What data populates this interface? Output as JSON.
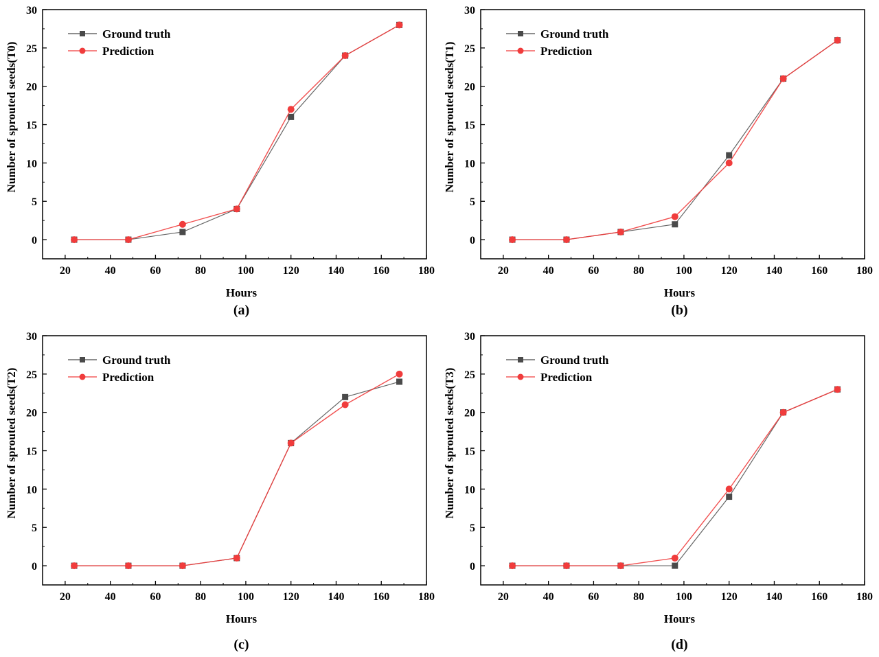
{
  "chart_data": [
    {
      "type": "line",
      "panel": "(a)",
      "title": "",
      "xlabel": "Hours",
      "ylabel": "Number of sprouted seeds(T0)",
      "xlim": [
        10,
        180
      ],
      "ylim": [
        -2.5,
        30
      ],
      "xticks": [
        20,
        40,
        60,
        80,
        100,
        120,
        140,
        160,
        180
      ],
      "yticks": [
        0,
        5,
        10,
        15,
        20,
        25,
        30
      ],
      "x": [
        24,
        48,
        72,
        96,
        120,
        144,
        168
      ],
      "series": [
        {
          "name": "Ground truth",
          "marker": "square",
          "color": "#4a4a4a",
          "values": [
            0,
            0,
            1,
            4,
            16,
            24,
            28
          ]
        },
        {
          "name": "Prediction",
          "marker": "circle",
          "color": "#f03c3c",
          "values": [
            0,
            0,
            2,
            4,
            17,
            24,
            28
          ]
        }
      ],
      "legend": "top-left",
      "grid": false
    },
    {
      "type": "line",
      "panel": "(b)",
      "title": "",
      "xlabel": "Hours",
      "ylabel": "Number of sprouted seeds(T1)",
      "xlim": [
        10,
        180
      ],
      "ylim": [
        -2.5,
        30
      ],
      "xticks": [
        20,
        40,
        60,
        80,
        100,
        120,
        140,
        160,
        180
      ],
      "yticks": [
        0,
        5,
        10,
        15,
        20,
        25,
        30
      ],
      "x": [
        24,
        48,
        72,
        96,
        120,
        144,
        168
      ],
      "series": [
        {
          "name": "Ground truth",
          "marker": "square",
          "color": "#4a4a4a",
          "values": [
            0,
            0,
            1,
            2,
            11,
            21,
            26
          ]
        },
        {
          "name": "Prediction",
          "marker": "circle",
          "color": "#f03c3c",
          "values": [
            0,
            0,
            1,
            3,
            10,
            21,
            26
          ]
        }
      ],
      "legend": "top-left",
      "grid": false
    },
    {
      "type": "line",
      "panel": "(c)",
      "title": "",
      "xlabel": "Hours",
      "ylabel": "Number of sprouted seeds(T2)",
      "xlim": [
        10,
        180
      ],
      "ylim": [
        -2.5,
        30
      ],
      "xticks": [
        20,
        40,
        60,
        80,
        100,
        120,
        140,
        160,
        180
      ],
      "yticks": [
        0,
        5,
        10,
        15,
        20,
        25,
        30
      ],
      "x": [
        24,
        48,
        72,
        96,
        120,
        144,
        168
      ],
      "series": [
        {
          "name": "Ground truth",
          "marker": "square",
          "color": "#4a4a4a",
          "values": [
            0,
            0,
            0,
            1,
            16,
            22,
            24
          ]
        },
        {
          "name": "Prediction",
          "marker": "circle",
          "color": "#f03c3c",
          "values": [
            0,
            0,
            0,
            1,
            16,
            21,
            25
          ]
        }
      ],
      "legend": "top-left",
      "grid": false
    },
    {
      "type": "line",
      "panel": "(d)",
      "title": "",
      "xlabel": "Hours",
      "ylabel": "Number of sprouted seeds(T3)",
      "xlim": [
        10,
        180
      ],
      "ylim": [
        -2.5,
        30
      ],
      "xticks": [
        20,
        40,
        60,
        80,
        100,
        120,
        140,
        160,
        180
      ],
      "yticks": [
        0,
        5,
        10,
        15,
        20,
        25,
        30
      ],
      "x": [
        24,
        48,
        72,
        96,
        120,
        144,
        168
      ],
      "series": [
        {
          "name": "Ground truth",
          "marker": "square",
          "color": "#4a4a4a",
          "values": [
            0,
            0,
            0,
            0,
            9,
            20,
            23
          ]
        },
        {
          "name": "Prediction",
          "marker": "circle",
          "color": "#f03c3c",
          "values": [
            0,
            0,
            0,
            1,
            10,
            20,
            23
          ]
        }
      ],
      "legend": "top-left",
      "grid": false
    }
  ]
}
